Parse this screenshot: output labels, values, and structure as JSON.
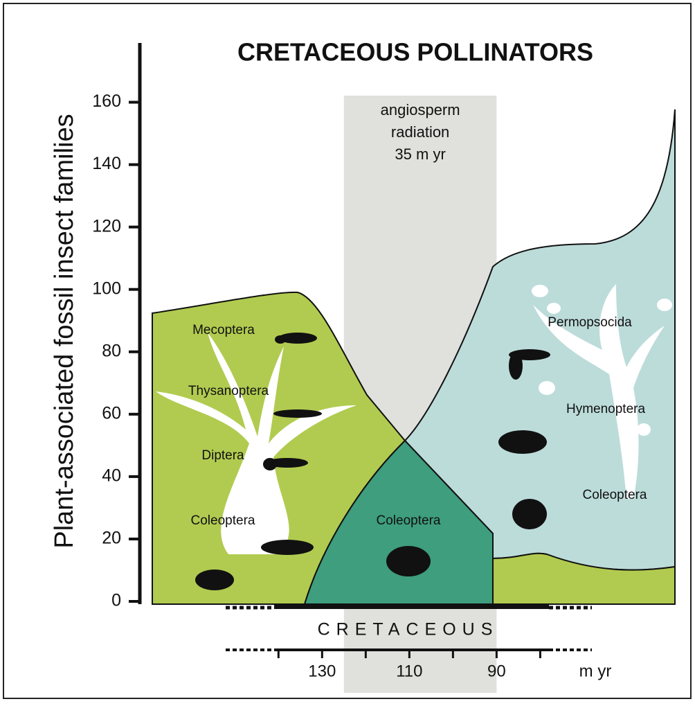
{
  "chart_data": {
    "type": "area-diagram",
    "title": "CRETACEOUS POLLINATORS",
    "y_label": "Plant-associated fossil insect families",
    "ylim": [
      0,
      179
    ],
    "yticks": [
      0,
      20,
      40,
      60,
      80,
      100,
      120,
      140,
      160
    ],
    "xlim": [
      141,
      78
    ],
    "xticks": [
      130,
      110,
      90
    ],
    "x_minor_ticks": [
      140,
      120,
      100,
      80
    ],
    "x_unit": "m yr",
    "period": "CRETACEOUS",
    "band": {
      "range": [
        125,
        90
      ],
      "label_lines": [
        "angiosperm",
        "radiation",
        "35 m yr"
      ]
    },
    "labels": [
      "Mecoptera",
      "Thysanoptera",
      "Diptera",
      "Coleoptera",
      "Coleoptera",
      "Permopsocida",
      "Hymenoptera",
      "Coleoptera"
    ]
  }
}
